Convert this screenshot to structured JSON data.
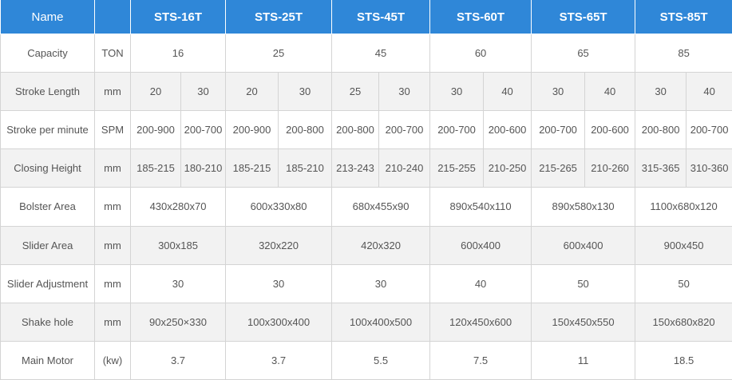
{
  "header": {
    "name_label": "Name",
    "unit_label": "",
    "models": [
      "STS-16T",
      "STS-25T",
      "STS-45T",
      "STS-60T",
      "STS-65T",
      "STS-85T"
    ]
  },
  "rows": {
    "capacity": {
      "label": "Capacity",
      "unit": "TON",
      "values": [
        "16",
        "25",
        "45",
        "60",
        "65",
        "85"
      ]
    },
    "stroke_length": {
      "label": "Stroke Length",
      "unit": "mm",
      "values": [
        "20",
        "30",
        "20",
        "30",
        "25",
        "30",
        "30",
        "40",
        "30",
        "40",
        "30",
        "40"
      ]
    },
    "stroke_per_minute": {
      "label": "Stroke per minute",
      "unit": "SPM",
      "values": [
        "200-900",
        "200-700",
        "200-900",
        "200-800",
        "200-800",
        "200-700",
        "200-700",
        "200-600",
        "200-700",
        "200-600",
        "200-800",
        "200-700"
      ]
    },
    "closing_height": {
      "label": "Closing Height",
      "unit": "mm",
      "values": [
        "185-215",
        "180-210",
        "185-215",
        "185-210",
        "213-243",
        "210-240",
        "215-255",
        "210-250",
        "215-265",
        "210-260",
        "315-365",
        "310-360"
      ]
    },
    "bolster_area": {
      "label": "Bolster Area",
      "unit": "mm",
      "values": [
        "430x280x70",
        "600x330x80",
        "680x455x90",
        "890x540x110",
        "890x580x130",
        "1100x680x120"
      ]
    },
    "slider_area": {
      "label": "Slider Area",
      "unit": "mm",
      "values": [
        "300x185",
        "320x220",
        "420x320",
        "600x400",
        "600x400",
        "900x450"
      ]
    },
    "slider_adjustment": {
      "label": "Slider Adjustment",
      "unit": "mm",
      "values": [
        "30",
        "30",
        "30",
        "40",
        "50",
        "50"
      ]
    },
    "shake_hole": {
      "label": "Shake hole",
      "unit": "mm",
      "values": [
        "90x250×330",
        "100x300x400",
        "100x400x500",
        "120x450x600",
        "150x450x550",
        "150x680x820"
      ]
    },
    "main_motor": {
      "label": "Main Motor",
      "unit": "(kw)",
      "values": [
        "3.7",
        "3.7",
        "5.5",
        "7.5",
        "11",
        "18.5"
      ]
    }
  },
  "colors": {
    "header_bg": "#2f87d8",
    "header_text": "#ffffff",
    "stripe": "#f2f2f2",
    "border": "#d4d4d4"
  }
}
